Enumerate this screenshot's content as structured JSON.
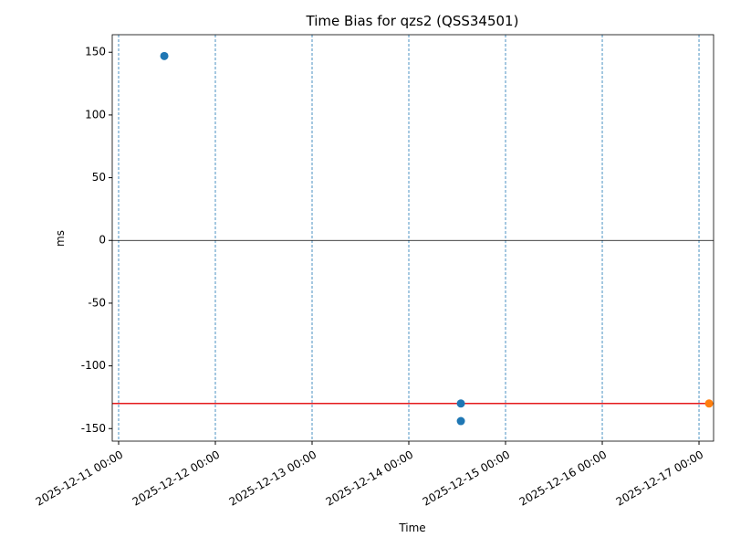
{
  "chart_data": {
    "type": "scatter",
    "title": "Time Bias for qzs2 (QSS34501)",
    "x_label": "Time",
    "y_label": "ms",
    "series": [
      {
        "color": "#1f77b4",
        "x": [
          "2025-12-11 11:20",
          "2025-12-14 12:55",
          "2025-12-14 12:55"
        ],
        "values": [
          147,
          -130,
          -144
        ]
      },
      {
        "color": "#ff7f0e",
        "x": [
          "2025-12-17 02:30"
        ],
        "values": [
          -130
        ]
      }
    ],
    "reference_line": {
      "value": -130,
      "color": "#e41a1c"
    },
    "xlim": [
      "2025-12-10 22:25",
      "2025-12-17 03:37"
    ],
    "xticks": [
      "2025-12-11 00:00",
      "2025-12-12 00:00",
      "2025-12-13 00:00",
      "2025-12-14 00:00",
      "2025-12-15 00:00",
      "2025-12-16 00:00",
      "2025-12-17 00:00"
    ],
    "ylim": [
      -160,
      164
    ],
    "yticks": [
      -150,
      -100,
      -50,
      0,
      50,
      100,
      150
    ],
    "grid": "x"
  }
}
